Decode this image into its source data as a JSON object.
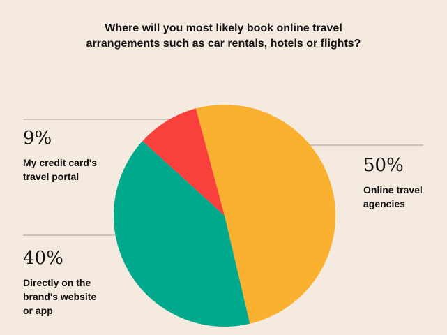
{
  "chart_data": {
    "type": "pie",
    "title": {
      "lines": [
        "Where will you most likely book online travel",
        "arrangements such as car rentals, hotels or flights?"
      ]
    },
    "slices": [
      {
        "key": "online",
        "value_label": "50%",
        "value": 50,
        "label_lines": [
          "Online travel",
          "agencies"
        ],
        "color": "#fbb130"
      },
      {
        "key": "direct",
        "value_label": "40%",
        "value": 40,
        "label_lines": [
          "Directly on the",
          "brand's website",
          "or app"
        ],
        "color": "#00a88c"
      },
      {
        "key": "credit",
        "value_label": "9%",
        "value": 9,
        "label_lines": [
          "My credit card's",
          "travel portal"
        ],
        "color": "#f9403c"
      }
    ],
    "legend": "none",
    "leader_line_color": "#9e9a96",
    "background": "#f5eadf"
  }
}
